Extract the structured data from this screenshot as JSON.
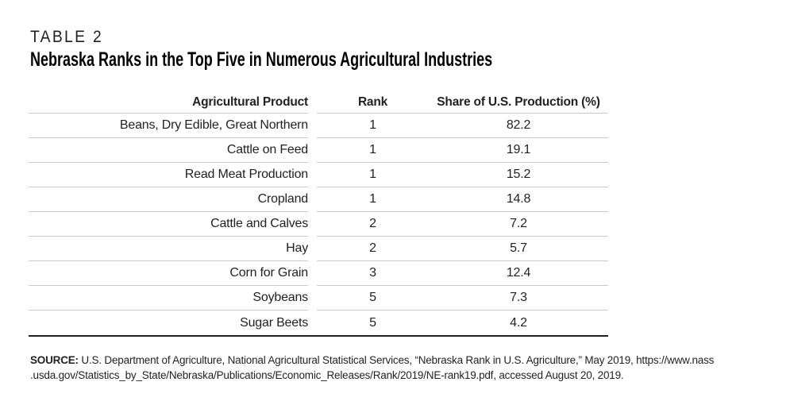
{
  "page": {
    "kicker": "TABLE 2",
    "title": "Nebraska Ranks in the Top Five in Numerous Agricultural Industries"
  },
  "table": {
    "type": "table",
    "columns": [
      {
        "key": "product",
        "label": "Agricultural Product"
      },
      {
        "key": "rank",
        "label": "Rank"
      },
      {
        "key": "share",
        "label": "Share of U.S. Production (%)"
      }
    ],
    "rows": [
      {
        "product": "Beans, Dry Edible, Great Northern",
        "rank": "1",
        "share": "82.2"
      },
      {
        "product": "Cattle on Feed",
        "rank": "1",
        "share": "19.1"
      },
      {
        "product": "Read Meat Production",
        "rank": "1",
        "share": "15.2"
      },
      {
        "product": "Cropland",
        "rank": "1",
        "share": "14.8"
      },
      {
        "product": "Cattle and Calves",
        "rank": "2",
        "share": "7.2"
      },
      {
        "product": "Hay",
        "rank": "2",
        "share": "5.7"
      },
      {
        "product": "Corn for Grain",
        "rank": "3",
        "share": "12.4"
      },
      {
        "product": "Soybeans",
        "rank": "5",
        "share": "7.3"
      },
      {
        "product": "Sugar Beets",
        "rank": "5",
        "share": "4.2"
      }
    ]
  },
  "source": {
    "label": "SOURCE:",
    "line1": "U.S. Department of Agriculture, National Agricultural Statistical Services, “Nebraska Rank in U.S. Agriculture,” May 2019, https://www.nass",
    "line2": ".usda.gov/Statistics_by_State/Nebraska/Publications/Economic_Releases/Rank/2019/NE-rank19.pdf, accessed August 20, 2019."
  },
  "colors": {
    "text": "#231f20",
    "title": "#000000",
    "row_line": "#c8c8c8",
    "bottom_line": "#231f20"
  }
}
